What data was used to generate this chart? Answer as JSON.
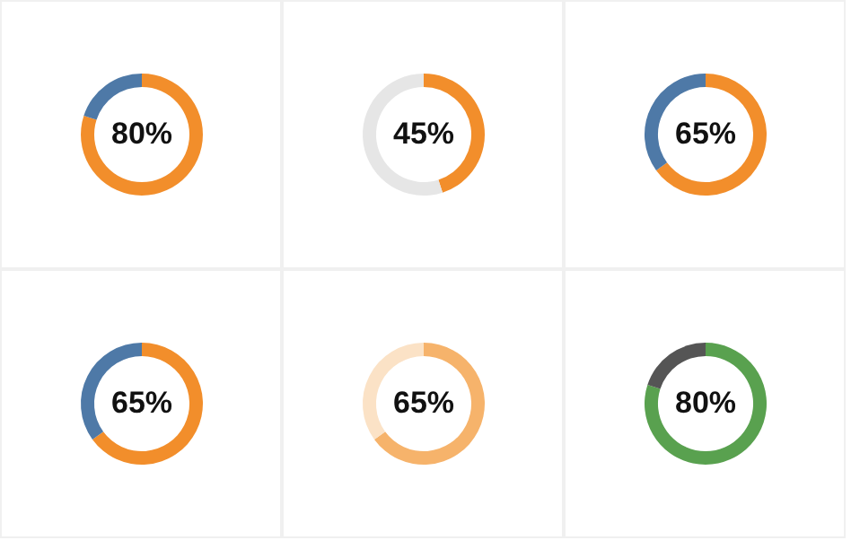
{
  "chart_data": [
    {
      "type": "donut",
      "categories": [
        null,
        null
      ],
      "values": [
        80,
        20
      ],
      "colors": [
        "#f28e2b",
        "#4e79a7"
      ],
      "annotations": [
        "80%"
      ]
    },
    {
      "type": "donut",
      "categories": [
        null,
        null
      ],
      "values": [
        45,
        55
      ],
      "colors": [
        "#f28e2b",
        "#e6e6e6"
      ],
      "annotations": [
        "45%"
      ]
    },
    {
      "type": "donut",
      "categories": [
        null,
        null
      ],
      "values": [
        65,
        35
      ],
      "colors": [
        "#f28e2b",
        "#4e79a7"
      ],
      "annotations": [
        "65%"
      ]
    },
    {
      "type": "donut",
      "categories": [
        null,
        null
      ],
      "values": [
        65,
        35
      ],
      "colors": [
        "#f28e2b",
        "#4e79a7"
      ],
      "annotations": [
        "65%"
      ]
    },
    {
      "type": "donut",
      "categories": [
        null,
        null
      ],
      "values": [
        65,
        35
      ],
      "colors": [
        "#f6b36b",
        "#fbe2c6"
      ],
      "annotations": [
        "65%"
      ]
    },
    {
      "type": "donut",
      "categories": [
        null,
        null
      ],
      "values": [
        80,
        20
      ],
      "colors": [
        "#59a14f",
        "#555555"
      ],
      "annotations": [
        "80%"
      ]
    }
  ]
}
